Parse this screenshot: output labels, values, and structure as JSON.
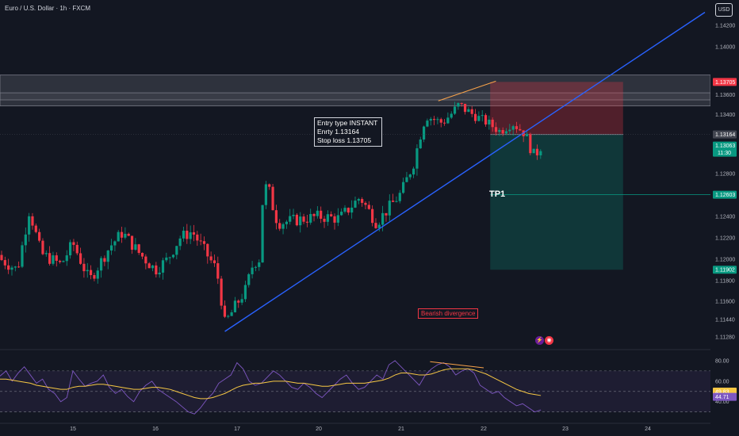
{
  "header": {
    "symbol": "Euro / U.S. Dollar · 1h · FXCM",
    "currency_button": "USD"
  },
  "price_axis": {
    "ticks": [
      "1.14200",
      "1.14000",
      "1.13600",
      "1.13400",
      "1.12800",
      "1.12400",
      "1.12200",
      "1.12000",
      "1.11800",
      "1.11600",
      "1.11440",
      "1.11280"
    ],
    "tick_values": [
      1.142,
      1.14,
      1.136,
      1.134,
      1.128,
      1.124,
      1.122,
      1.12,
      1.118,
      1.116,
      1.1144,
      1.1128
    ],
    "tags": {
      "stop": {
        "text": "1.13705",
        "value": 1.13705,
        "color": "#f23645"
      },
      "entry": {
        "text": "1.13164",
        "value": 1.13164,
        "color": "#434651"
      },
      "current_price": "1.13063",
      "current_value": 1.13063,
      "countdown": "11:30",
      "current_color": "#089981",
      "tp1": {
        "text": "1.12603",
        "value": 1.12603,
        "color": "#089981"
      },
      "target": {
        "text": "1.11902",
        "value": 1.11902,
        "color": "#089981"
      }
    }
  },
  "rsi_axis": {
    "ticks": [
      "80.00",
      "60.00",
      "40.00"
    ],
    "tick_values": [
      80,
      60,
      40
    ],
    "tags": [
      {
        "text": "49.83",
        "value": 49.83,
        "color": "#f7c844",
        "text_color": "#000000"
      },
      {
        "text": "44.71",
        "value": 44.71,
        "color": "#7e57c2",
        "text_color": "#ffffff"
      }
    ],
    "band": [
      30,
      70
    ]
  },
  "time_axis": [
    {
      "label": "15",
      "day": 15
    },
    {
      "label": "16",
      "day": 16
    },
    {
      "label": "17",
      "day": 17
    },
    {
      "label": "20",
      "day": 20
    },
    {
      "label": "21",
      "day": 21
    },
    {
      "label": "22",
      "day": 22
    },
    {
      "label": "23",
      "day": 23
    },
    {
      "label": "24",
      "day": 24
    }
  ],
  "annotations": {
    "trade_note": [
      "Entry type INSTANT",
      "Enrty 1.13164",
      "Stop loss 1.13705"
    ],
    "tp1_label": "TP1",
    "divergence_label": "Bearish divergence"
  },
  "chart_data": {
    "type": "candlestick",
    "symbol": "EURUSD",
    "timeframe": "1h",
    "ylim": [
      1.1118,
      1.1432
    ],
    "xlim": [
      "14",
      "24.5"
    ],
    "candles_ohlc_summary": "hourly OHLC path rendered by script from the segment waypoints below",
    "price_path": [
      {
        "day": 14.0,
        "price": 1.1204
      },
      {
        "day": 14.3,
        "price": 1.119
      },
      {
        "day": 14.45,
        "price": 1.1246
      },
      {
        "day": 14.6,
        "price": 1.1205
      },
      {
        "day": 14.85,
        "price": 1.1195
      },
      {
        "day": 15.0,
        "price": 1.1215
      },
      {
        "day": 15.2,
        "price": 1.118
      },
      {
        "day": 15.45,
        "price": 1.1212
      },
      {
        "day": 15.6,
        "price": 1.1225
      },
      {
        "day": 15.8,
        "price": 1.1206
      },
      {
        "day": 16.0,
        "price": 1.119
      },
      {
        "day": 16.15,
        "price": 1.12
      },
      {
        "day": 16.3,
        "price": 1.122
      },
      {
        "day": 16.45,
        "price": 1.1226
      },
      {
        "day": 16.6,
        "price": 1.1208
      },
      {
        "day": 16.75,
        "price": 1.119
      },
      {
        "day": 16.85,
        "price": 1.114
      },
      {
        "day": 17.0,
        "price": 1.1158
      },
      {
        "day": 17.2,
        "price": 1.117
      },
      {
        "day": 17.4,
        "price": 1.1196
      },
      {
        "day": 17.55,
        "price": 1.12
      },
      {
        "day": 17.62,
        "price": 1.125
      },
      {
        "day": 17.75,
        "price": 1.1272
      },
      {
        "day": 17.95,
        "price": 1.124
      },
      {
        "day": 18.05,
        "price": 1.1234
      },
      {
        "day": 20.0,
        "price": 1.124
      },
      {
        "day": 20.25,
        "price": 1.1238
      },
      {
        "day": 20.5,
        "price": 1.1258
      },
      {
        "day": 20.7,
        "price": 1.1234
      },
      {
        "day": 20.85,
        "price": 1.1248
      },
      {
        "day": 21.0,
        "price": 1.1262
      },
      {
        "day": 21.15,
        "price": 1.129
      },
      {
        "day": 21.3,
        "price": 1.1338
      },
      {
        "day": 21.5,
        "price": 1.133
      },
      {
        "day": 21.7,
        "price": 1.135
      },
      {
        "day": 21.9,
        "price": 1.1338
      },
      {
        "day": 22.05,
        "price": 1.133
      },
      {
        "day": 22.2,
        "price": 1.132
      },
      {
        "day": 22.35,
        "price": 1.133
      },
      {
        "day": 22.5,
        "price": 1.1318
      },
      {
        "day": 22.62,
        "price": 1.1296
      },
      {
        "day": 22.7,
        "price": 1.1306
      }
    ],
    "trendline": {
      "from": {
        "day": 16.85,
        "price": 1.1133
      },
      "to": {
        "day": 24.7,
        "price": 1.1426
      }
    },
    "zones": [
      {
        "name": "resistance_zone",
        "from_price": 1.1349,
        "to_price": 1.1375
      },
      {
        "name": "resistance_zone_inner",
        "from_price": 1.1355,
        "to_price": 1.1362
      }
    ],
    "position": {
      "start_day": 22.08,
      "end_day": 23.7,
      "entry": 1.13164,
      "stop": 1.13705,
      "target": 1.11902,
      "tp1": 1.12603
    },
    "divergence_line_price": {
      "from": {
        "day": 21.45,
        "price": 1.1354
      },
      "to": {
        "day": 22.15,
        "price": 1.1371
      }
    },
    "rsi": {
      "ylim": [
        22,
        90
      ],
      "upper": 70,
      "lower": 30,
      "rsi_points": [
        65,
        70,
        60,
        68,
        74,
        66,
        58,
        62,
        52,
        48,
        40,
        44,
        70,
        62,
        55,
        58,
        60,
        66,
        54,
        48,
        52,
        45,
        40,
        50,
        56,
        60,
        52,
        48,
        44,
        40,
        35,
        30,
        28,
        34,
        42,
        48,
        58,
        62,
        66,
        78,
        72,
        60,
        56,
        58,
        64,
        70,
        66,
        60,
        54,
        52,
        58,
        54,
        48,
        44,
        50,
        56,
        62,
        66,
        58,
        52,
        54,
        60,
        66,
        62,
        76,
        80,
        74,
        68,
        62,
        56,
        66,
        72,
        76,
        78,
        74,
        66,
        70,
        72,
        68,
        56,
        52,
        48,
        50,
        44,
        40,
        36,
        38,
        34,
        30,
        32
      ],
      "rsi_ma_points": [
        62,
        62,
        61,
        60,
        59,
        58,
        56,
        55,
        54,
        53,
        52,
        52,
        54,
        55,
        55,
        56,
        57,
        57,
        56,
        55,
        54,
        53,
        52,
        52,
        53,
        54,
        54,
        53,
        52,
        50,
        48,
        46,
        44,
        43,
        43,
        44,
        46,
        48,
        51,
        54,
        56,
        57,
        58,
        58,
        59,
        60,
        60,
        60,
        59,
        58,
        58,
        57,
        56,
        55,
        55,
        56,
        57,
        58,
        58,
        58,
        58,
        59,
        60,
        61,
        63,
        66,
        68,
        68,
        67,
        66,
        66,
        67,
        69,
        71,
        72,
        72,
        72,
        72,
        71,
        69,
        67,
        64,
        61,
        58,
        55,
        52,
        50,
        48,
        47,
        46
      ]
    }
  }
}
